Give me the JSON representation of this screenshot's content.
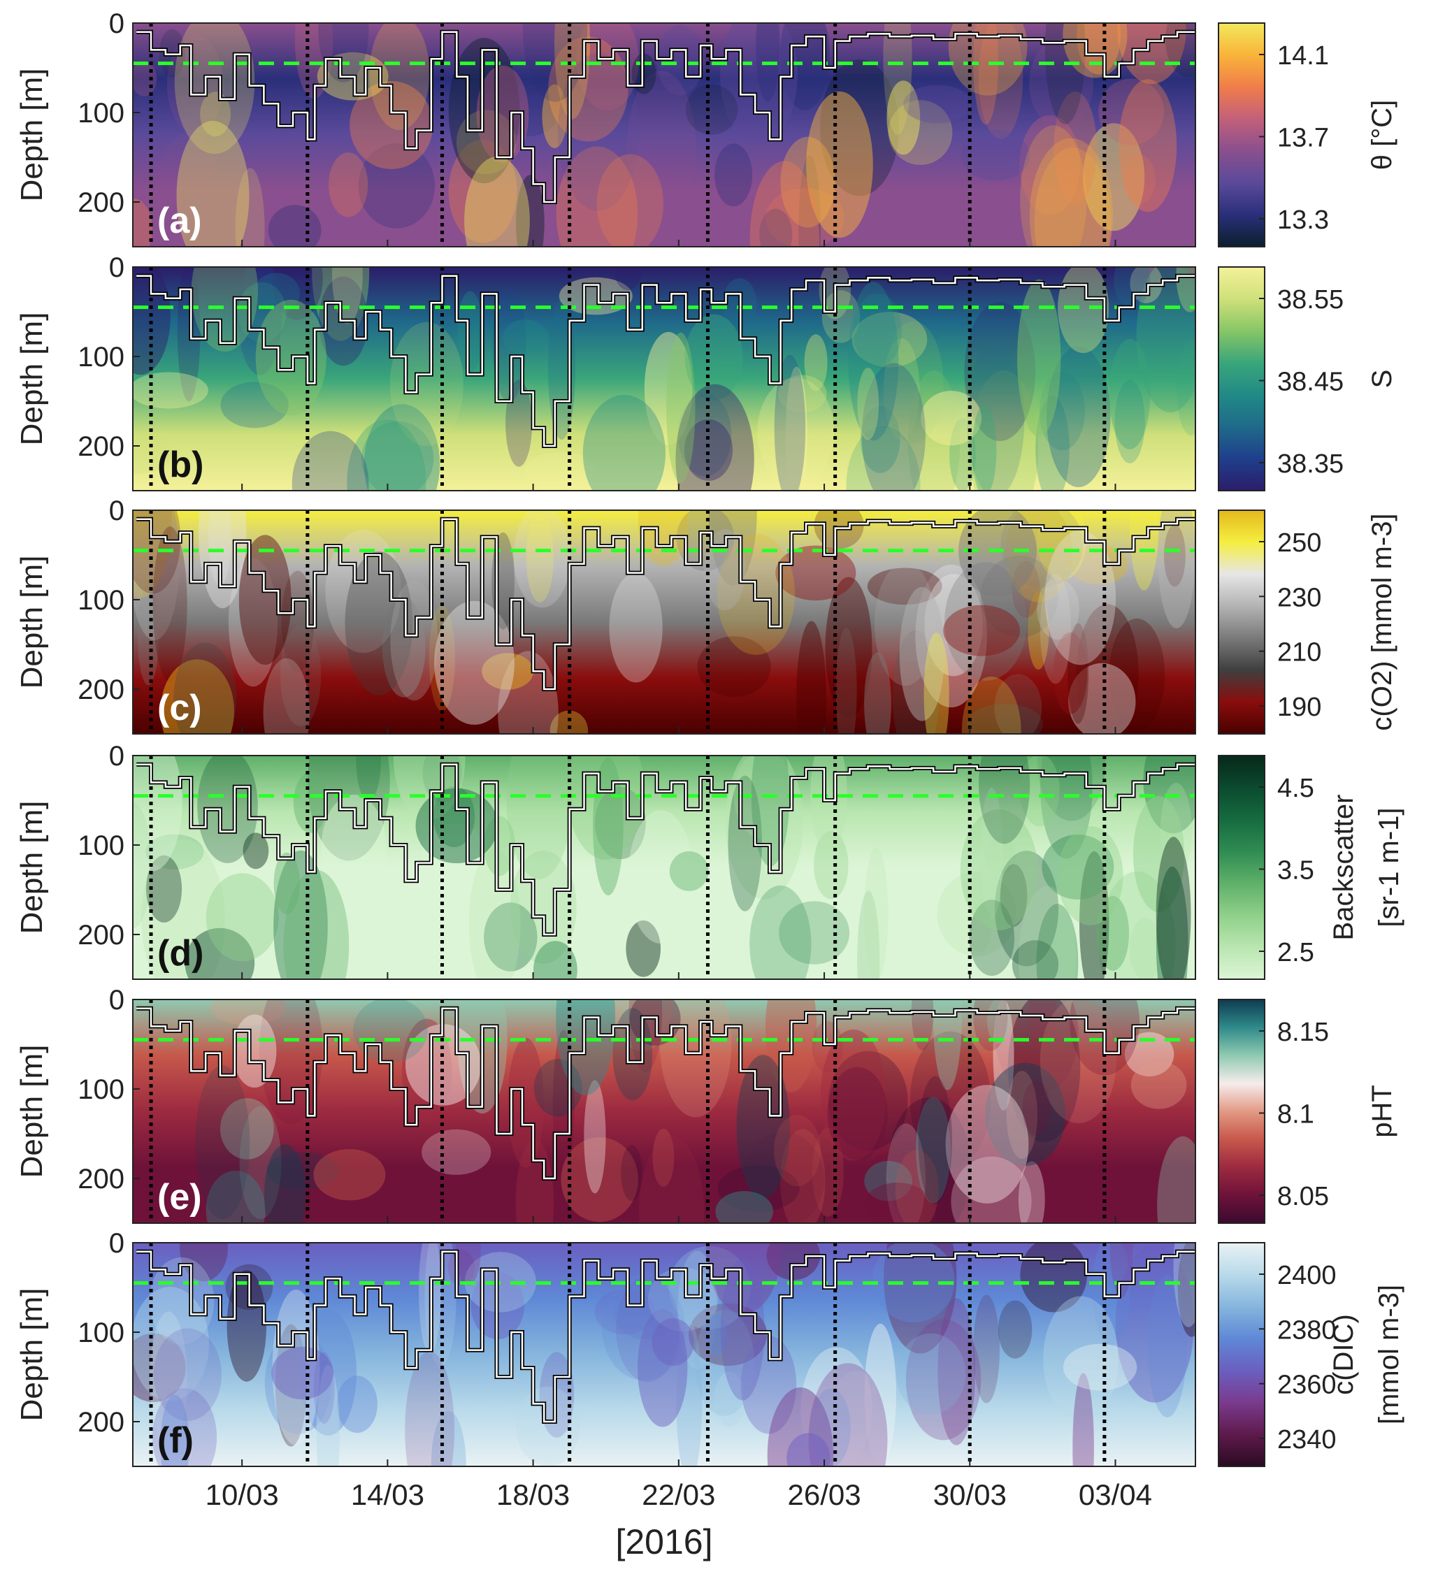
{
  "chart_data": {
    "type": "heatmap",
    "x_ticks": [
      "10/03",
      "14/03",
      "18/03",
      "22/03",
      "26/03",
      "30/03",
      "03/04"
    ],
    "x_label": "[2016]",
    "x_range_days": [
      7.0,
      36.2
    ],
    "x_tick_days": [
      10,
      14,
      18,
      22,
      26,
      30,
      34
    ],
    "y_label": "Depth [m]",
    "y_ticks": [
      0,
      100,
      200
    ],
    "ylim": [
      250,
      0
    ],
    "reference_depth_m": 45,
    "vertical_marker_days": [
      7.5,
      11.8,
      15.5,
      19.0,
      22.8,
      26.3,
      30.0,
      33.7
    ],
    "mixed_layer_depth": {
      "days": [
        7.1,
        7.5,
        7.9,
        8.3,
        8.6,
        9.0,
        9.4,
        9.8,
        10.2,
        10.6,
        11.0,
        11.4,
        11.8,
        12.0,
        12.3,
        12.7,
        13.1,
        13.4,
        13.8,
        14.1,
        14.5,
        14.8,
        15.2,
        15.5,
        15.9,
        16.2,
        16.6,
        17.0,
        17.4,
        17.7,
        18.0,
        18.3,
        18.6,
        19.0,
        19.4,
        19.8,
        20.2,
        20.6,
        21.0,
        21.4,
        21.8,
        22.2,
        22.6,
        22.9,
        23.3,
        23.7,
        24.1,
        24.5,
        24.8,
        25.1,
        25.5,
        26.0,
        26.3,
        26.7,
        27.2,
        27.8,
        28.4,
        29.0,
        29.6,
        30.2,
        30.8,
        31.4,
        32.0,
        32.6,
        33.2,
        33.7,
        34.1,
        34.5,
        34.9,
        35.3,
        35.7,
        36.1
      ],
      "depths": [
        10,
        30,
        35,
        25,
        80,
        60,
        85,
        35,
        70,
        90,
        115,
        100,
        130,
        70,
        40,
        60,
        80,
        50,
        70,
        100,
        140,
        120,
        40,
        10,
        60,
        120,
        30,
        150,
        100,
        140,
        180,
        200,
        150,
        60,
        20,
        40,
        30,
        70,
        20,
        40,
        30,
        60,
        25,
        40,
        30,
        80,
        100,
        130,
        60,
        25,
        15,
        50,
        20,
        15,
        12,
        15,
        14,
        18,
        12,
        15,
        14,
        18,
        22,
        20,
        35,
        60,
        45,
        30,
        20,
        15,
        10,
        10
      ]
    },
    "panels": [
      {
        "label": "(a)",
        "quantity": "θ",
        "colorbar_label": "θ [°C]",
        "colorbar_ticks": [
          "14.1",
          "13.7",
          "13.3"
        ],
        "colormap": [
          "#0b1f2e",
          "#2a2f7a",
          "#5b4a9a",
          "#8a4f8e",
          "#c2607a",
          "#f07d4a",
          "#f9b43a",
          "#f2e85c"
        ]
      },
      {
        "label": "(b)",
        "quantity": "S",
        "colorbar_label": "S",
        "colorbar_ticks": [
          "38.55",
          "38.45",
          "38.35"
        ],
        "colormap": [
          "#2b1d6a",
          "#1f3f8c",
          "#1f6a8a",
          "#218a86",
          "#3aa67a",
          "#87c666",
          "#cfe07a",
          "#f4f19a"
        ]
      },
      {
        "label": "(c)",
        "quantity": "c(O2)",
        "colorbar_label": "c(O2) [mmol m-3]",
        "colorbar_ticks": [
          "250",
          "230",
          "210",
          "190"
        ],
        "colormap": [
          "#4a0000",
          "#8a0d0d",
          "#3f3f3f",
          "#7a7a7a",
          "#b3b3b3",
          "#e6e6e6",
          "#f5ee40",
          "#e4b81c"
        ]
      },
      {
        "label": "(d)",
        "quantity": "Backscatter",
        "colorbar_label": "Backscatter",
        "colorbar_label_2": "[sr-1 m-1]",
        "colorbar_ticks": [
          "4.5",
          "3.5",
          "2.5"
        ],
        "colormap": [
          "#dcf5d6",
          "#b9e6b0",
          "#8fd08a",
          "#5fb06a",
          "#2f8c52",
          "#166b40",
          "#0b4a2e",
          "#06281a"
        ]
      },
      {
        "label": "(e)",
        "quantity": "pHT",
        "colorbar_label": "pHT",
        "colorbar_ticks": [
          "8.15",
          "8.1",
          "8.05"
        ],
        "colormap": [
          "#3b0a2f",
          "#6e1239",
          "#9c2a40",
          "#c6584b",
          "#e29a85",
          "#f6ecec",
          "#8fcab1",
          "#2f8a8a",
          "#0e3b52"
        ]
      },
      {
        "label": "(f)",
        "quantity": "c(DIC)",
        "colorbar_label": "c(DIC)",
        "colorbar_label_2": "[mmol m-3]",
        "colorbar_ticks": [
          "2400",
          "2380",
          "2360",
          "2340"
        ],
        "colormap": [
          "#2a0a22",
          "#5e1a4c",
          "#7a3b8e",
          "#6a5fc0",
          "#5f88d6",
          "#86b5dd",
          "#b9daea",
          "#e9f2f4"
        ]
      }
    ]
  }
}
